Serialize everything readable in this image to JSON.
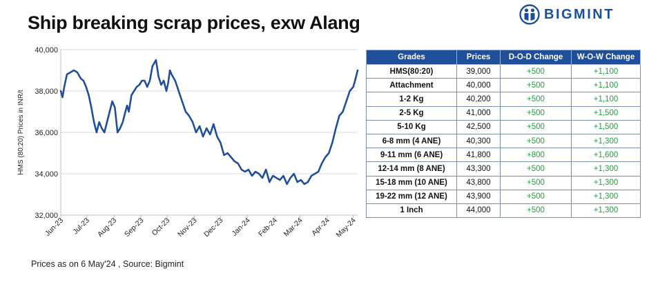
{
  "title": "Ship breaking scrap prices, exw Alang",
  "brand": {
    "name": "BIGMINT",
    "color": "#1b4f9c"
  },
  "chart_data": {
    "type": "line",
    "ylabel": "HMS (80:20) Prices in INR/t",
    "xlabel": "",
    "ylim": [
      32000,
      40000
    ],
    "yticks": [
      "32,000",
      "34,000",
      "36,000",
      "38,000",
      "40,000"
    ],
    "xticks": [
      "Jun-23",
      "Jul-23",
      "Aug-23",
      "Sep-23",
      "Oct-23",
      "Nov-23",
      "Dec-23",
      "Jan-24",
      "Feb-24",
      "Mar-24",
      "Apr-24",
      "May-24"
    ],
    "grid": "horizontal",
    "line_color": "#1f4e9a",
    "series": [
      {
        "x": [
          "2023-06-01",
          "2023-06-03",
          "2023-06-05",
          "2023-06-08",
          "2023-06-12",
          "2023-06-16",
          "2023-06-20",
          "2023-06-24",
          "2023-06-27",
          "2023-06-30",
          "2023-07-03",
          "2023-07-06",
          "2023-07-09",
          "2023-07-12",
          "2023-07-15",
          "2023-07-18",
          "2023-07-21",
          "2023-07-24",
          "2023-07-27",
          "2023-07-30",
          "2023-08-02",
          "2023-08-05",
          "2023-08-08",
          "2023-08-11",
          "2023-08-14",
          "2023-08-16",
          "2023-08-18",
          "2023-08-21",
          "2023-08-24",
          "2023-08-27",
          "2023-08-30",
          "2023-09-02",
          "2023-09-05",
          "2023-09-08",
          "2023-09-11",
          "2023-09-14",
          "2023-09-18",
          "2023-09-21",
          "2023-09-24",
          "2023-09-27",
          "2023-09-30",
          "2023-10-02",
          "2023-10-04",
          "2023-10-06",
          "2023-10-10",
          "2023-10-14",
          "2023-10-18",
          "2023-10-22",
          "2023-10-26",
          "2023-10-30",
          "2023-11-03",
          "2023-11-07",
          "2023-11-11",
          "2023-11-15",
          "2023-11-19",
          "2023-11-23",
          "2023-11-27",
          "2023-12-01",
          "2023-12-05",
          "2023-12-09",
          "2023-12-13",
          "2023-12-17",
          "2023-12-21",
          "2023-12-25",
          "2023-12-29",
          "2024-01-02",
          "2024-01-06",
          "2024-01-10",
          "2024-01-14",
          "2024-01-18",
          "2024-01-22",
          "2024-01-26",
          "2024-01-30",
          "2024-02-03",
          "2024-02-07",
          "2024-02-11",
          "2024-02-15",
          "2024-02-19",
          "2024-02-23",
          "2024-02-27",
          "2024-03-02",
          "2024-03-06",
          "2024-03-10",
          "2024-03-14",
          "2024-03-18",
          "2024-03-22",
          "2024-03-26",
          "2024-03-30",
          "2024-04-03",
          "2024-04-07",
          "2024-04-11",
          "2024-04-15",
          "2024-04-19",
          "2024-04-23",
          "2024-04-27",
          "2024-05-01",
          "2024-05-03",
          "2024-05-06"
        ],
        "values": [
          38000,
          37700,
          38200,
          38800,
          38900,
          39000,
          38900,
          38600,
          38500,
          38200,
          37800,
          37200,
          36500,
          36000,
          36500,
          36200,
          36000,
          36500,
          37000,
          37500,
          37200,
          36000,
          36200,
          36500,
          37000,
          37300,
          37000,
          37800,
          38000,
          38200,
          38300,
          38500,
          38500,
          38200,
          38500,
          39200,
          39500,
          38700,
          38300,
          38500,
          38000,
          38400,
          39000,
          38800,
          38500,
          38000,
          37500,
          37000,
          36800,
          36500,
          36000,
          36300,
          35800,
          36200,
          35900,
          36400,
          35800,
          35500,
          34900,
          35000,
          34800,
          34600,
          34500,
          34200,
          34100,
          34200,
          33900,
          34100,
          34000,
          33800,
          34200,
          33600,
          33900,
          33800,
          33700,
          33900,
          33500,
          33800,
          34000,
          33600,
          33700,
          33500,
          33600,
          33900,
          34000,
          34100,
          34500,
          34800,
          35000,
          35500,
          36200,
          36800,
          37000,
          37500,
          38000,
          38200,
          38500,
          39000
        ]
      }
    ]
  },
  "table": {
    "headers": [
      "Grades",
      "Prices",
      "D-O-D Change",
      "W-O-W Change"
    ],
    "rows": [
      [
        "HMS(80:20)",
        "39,000",
        "+500",
        "+1,100"
      ],
      [
        "Attachment",
        "40,000",
        "+500",
        "+1,100"
      ],
      [
        "1-2 Kg",
        "40,200",
        "+500",
        "+1,100"
      ],
      [
        "2-5 Kg",
        "41,000",
        "+500",
        "+1,500"
      ],
      [
        "5-10 Kg",
        "42,500",
        "+500",
        "+1,500"
      ],
      [
        "6-8 mm (4 ANE)",
        "40,300",
        "+500",
        "+1,300"
      ],
      [
        "9-11 mm (6 ANE)",
        "41,800",
        "+800",
        "+1,600"
      ],
      [
        "12-14 mm (8 ANE)",
        "43,300",
        "+500",
        "+1,300"
      ],
      [
        "15-18 mm (10 ANE)",
        "43,800",
        "+500",
        "+1,300"
      ],
      [
        "19-22 mm (12 ANE)",
        "43,900",
        "+500",
        "+1,300"
      ],
      [
        "1 Inch",
        "44,000",
        "+500",
        "+1,300"
      ]
    ]
  },
  "source": "Prices as on 6 May'24 , Source:  Bigmint"
}
